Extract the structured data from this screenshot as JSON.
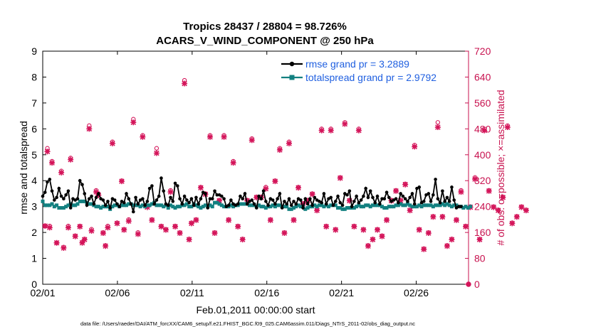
{
  "chart_data": {
    "type": "line",
    "title_line1": "Tropics 28437 / 28804 = 98.726%",
    "title_line2": "ACARS_V_WIND_COMPONENT @ 250 hPa",
    "xlabel": "Feb.01,2011 00:00:00 start",
    "ylabel_left": "rmse and totalspread",
    "ylabel_right": "# of obs: o=possible; ×=assimilated",
    "xlim": [
      0,
      28.5
    ],
    "ylim_left": [
      0,
      9
    ],
    "ylim_right": [
      0,
      720
    ],
    "x_ticks": [
      {
        "x": 0,
        "label": "02/01"
      },
      {
        "x": 5,
        "label": "02/06"
      },
      {
        "x": 10,
        "label": "02/11"
      },
      {
        "x": 15,
        "label": "02/16"
      },
      {
        "x": 20,
        "label": "02/21"
      },
      {
        "x": 25,
        "label": "02/26"
      }
    ],
    "y_ticks_left": [
      "0",
      "1",
      "2",
      "3",
      "4",
      "5",
      "6",
      "7",
      "8",
      "9"
    ],
    "y_ticks_right": [
      "0",
      "80",
      "160",
      "240",
      "320",
      "400",
      "480",
      "560",
      "640",
      "720"
    ],
    "footnote": "data file: /Users/raeder/DAI/ATM_forcXX/CAM6_setup/f.e21.FHIST_BGC.f09_025.CAM6assim.011/Diags_NTrS_2011-02/obs_diag_output.nc",
    "colors": {
      "rmse": "#000000",
      "spread": "#138080",
      "obs": "#d4155a",
      "legend_text": "#1f5fe0",
      "right_axis": "#c8124f"
    },
    "series": [
      {
        "name": "rmse grand pr = 3.2889",
        "key": "rmse",
        "values": [
          3.4,
          3.55,
          3.95,
          4.05,
          3.6,
          3.25,
          3.35,
          3.7,
          3.4,
          3.3,
          3.45,
          3.6,
          2.95,
          3.3,
          3.25,
          3.3,
          4.0,
          3.85,
          3.5,
          3.05,
          3.3,
          3.4,
          3.1,
          3.35,
          3.5,
          3.3,
          3.25,
          3.05,
          3.2,
          2.95,
          3.3,
          3.25,
          3.1,
          3.0,
          3.2,
          3.15,
          3.5,
          3.3,
          3.1,
          2.8,
          3.35,
          3.1,
          3.25,
          3.3,
          3.05,
          3.2,
          3.7,
          3.8,
          3.1,
          3.25,
          3.4,
          4.1,
          3.6,
          3.1,
          3.05,
          3.35,
          3.2,
          3.9,
          3.8,
          3.3,
          3.1,
          3.4,
          3.25,
          3.15,
          3.3,
          3.05,
          3.35,
          3.1,
          3.3,
          3.55,
          3.5,
          2.95,
          3.3,
          3.3,
          3.6,
          3.45,
          3.45,
          3.4,
          3.3,
          3.0,
          3.05,
          3.25,
          3.1,
          3.05,
          3.1,
          3.4,
          3.3,
          3.5,
          3.1,
          3.2,
          3.25,
          3.1,
          2.95,
          3.4,
          3.3,
          3.6,
          3.2,
          3.05,
          3.3,
          3.25,
          3.1,
          3.3,
          3.5,
          2.95,
          3.2,
          3.1,
          3.3,
          3.05,
          3.2,
          3.1,
          3.3,
          3.25,
          2.95,
          3.3,
          3.1,
          3.3,
          3.05,
          3.35,
          3.25,
          3.2,
          3.15,
          3.5,
          3.1,
          3.3,
          3.35,
          3.05,
          3.2,
          3.4,
          3.15,
          3.05,
          3.5,
          3.45,
          3.6,
          3.0,
          3.2,
          3.4,
          3.15,
          3.25,
          3.4,
          3.7,
          3.35,
          3.6,
          3.35,
          3.15,
          3.4,
          3.1,
          3.3,
          3.3,
          3.55,
          3.35,
          3.2,
          3.25,
          3.3,
          3.15,
          3.5,
          3.4,
          3.3,
          3.2,
          3.35,
          3.5,
          3.1,
          3.7,
          3.75,
          3.15,
          3.2,
          3.45,
          3.5,
          3.2,
          3.45,
          4.05,
          3.3,
          3.15,
          3.6,
          3.2,
          3.35,
          3.2,
          3.75,
          3.25,
          2.95,
          3.0,
          3.0
        ]
      },
      {
        "name": "totalspread grand pr = 2.9792",
        "key": "spread",
        "values": [
          3.2,
          3.05,
          3.05,
          3.05,
          3.1,
          3.0,
          3.05,
          2.95,
          2.95,
          2.95,
          3.0,
          3.05,
          3.1,
          3.05,
          3.05,
          3.1,
          3.2,
          3.2,
          3.2,
          3.15,
          3.1,
          3.1,
          3.05,
          3.0,
          3.0,
          2.95,
          3.0,
          3.0,
          3.0,
          2.9,
          3.0,
          3.05,
          3.05,
          3.0,
          3.05,
          3.05,
          3.05,
          3.1,
          3.1,
          3.05,
          3.05,
          3.05,
          3.0,
          3.05,
          3.0,
          3.05,
          3.05,
          3.1,
          3.15,
          3.05,
          3.05,
          3.05,
          3.0,
          3.05,
          2.95,
          3.05,
          3.0,
          2.95,
          3.0,
          3.0,
          3.05,
          3.05,
          3.1,
          3.0,
          3.0,
          3.1,
          3.05,
          3.0,
          2.95,
          3.0,
          3.05,
          3.0,
          3.05,
          3.0,
          3.15,
          3.15,
          3.1,
          3.05,
          3.0,
          3.0,
          3.0,
          3.05,
          3.0,
          3.05,
          3.05,
          3.1,
          3.1,
          3.1,
          3.1,
          3.05,
          3.05,
          3.05,
          3.0,
          3.05,
          3.0,
          3.0,
          2.95,
          3.0,
          3.0,
          3.05,
          3.0,
          3.05,
          3.05,
          3.0,
          3.0,
          3.0,
          2.9,
          2.9,
          2.95,
          3.0,
          3.05,
          3.0,
          3.0,
          2.9,
          2.95,
          3.0,
          3.0,
          3.05,
          3.0,
          3.05,
          3.05,
          3.0,
          3.05,
          3.0,
          3.05,
          3.05,
          3.05,
          2.95,
          2.95,
          2.9,
          2.9,
          2.95,
          2.95,
          2.95,
          2.95,
          3.0,
          3.05,
          3.0,
          3.0,
          3.05,
          3.05,
          3.0,
          3.05,
          3.05,
          3.05,
          3.05,
          3.0,
          2.95,
          2.95,
          3.0,
          3.0,
          3.0,
          3.05,
          3.05,
          3.1,
          3.05,
          3.05,
          3.1,
          3.05,
          3.0,
          3.0,
          3.0,
          3.05,
          3.0,
          3.05,
          3.05,
          3.05,
          3.05,
          3.0,
          3.05,
          3.05,
          3.05,
          3.1,
          3.05,
          3.1,
          3.05,
          3.0,
          3.05,
          3.05,
          3.0,
          3.0,
          2.95,
          3.0,
          2.95,
          3.0
        ]
      },
      {
        "name": "obs possible",
        "key": "obs_possible",
        "values": [
          180,
          420,
          180,
          380,
          128,
          350,
          115,
          180,
          390,
          150,
          180,
          130,
          140,
          490,
          170,
          290,
          280,
          160,
          120,
          180,
          440,
          190,
          320,
          170,
          200,
          510,
          160,
          460,
          240,
          200,
          420,
          180,
          170,
          290,
          180,
          160,
          630,
          140,
          190,
          200,
          300,
          280,
          460,
          160,
          260,
          460,
          200,
          380,
          180,
          140,
          260,
          450,
          270,
          270,
          300,
          200,
          320,
          420,
          160,
          440,
          200,
          300,
          250,
          260,
          280,
          230,
          480,
          180,
          480,
          170,
          330,
          500,
          260,
          180,
          480,
          170,
          120,
          140,
          170,
          150,
          200,
          260,
          290,
          260,
          310,
          230,
          430,
          170,
          110,
          160,
          210,
          500,
          210,
          120,
          140,
          200,
          290,
          180,
          240,
          330,
          140,
          480,
          290,
          240,
          230,
          270,
          490,
          190,
          210,
          240,
          230
        ]
      },
      {
        "name": "obs assimilated",
        "key": "obs_assimilated",
        "values": [
          180,
          410,
          175,
          375,
          128,
          345,
          112,
          175,
          385,
          148,
          178,
          128,
          138,
          480,
          165,
          285,
          275,
          158,
          118,
          175,
          435,
          188,
          318,
          168,
          195,
          500,
          155,
          455,
          238,
          198,
          405,
          178,
          168,
          285,
          178,
          158,
          620,
          138,
          188,
          198,
          298,
          278,
          455,
          158,
          258,
          455,
          198,
          375,
          178,
          138,
          258,
          445,
          268,
          268,
          295,
          198,
          318,
          415,
          158,
          435,
          198,
          298,
          248,
          258,
          278,
          228,
          475,
          178,
          475,
          168,
          328,
          495,
          258,
          178,
          475,
          168,
          118,
          138,
          168,
          148,
          198,
          258,
          288,
          258,
          308,
          228,
          425,
          168,
          108,
          158,
          208,
          485,
          208,
          118,
          138,
          198,
          285,
          178,
          238,
          325,
          138,
          475,
          288,
          238,
          228,
          268,
          485,
          188,
          208,
          238,
          228
        ]
      }
    ],
    "obs_x_indices": [
      1,
      2,
      3,
      4,
      6,
      8,
      9,
      11,
      12,
      14,
      16,
      17,
      18,
      20,
      21,
      23,
      24,
      26,
      27,
      28,
      30,
      32,
      34,
      35,
      37,
      39,
      41,
      43,
      45,
      47,
      49,
      51,
      53,
      55,
      57,
      59,
      61,
      63,
      64,
      66,
      68,
      70,
      72,
      74,
      76,
      78,
      80,
      82,
      84,
      86,
      88,
      90,
      92,
      94,
      96,
      98,
      100,
      102,
      104,
      106,
      108,
      110,
      112,
      114,
      116,
      118,
      120,
      122,
      124,
      126,
      128,
      130,
      132,
      134,
      136,
      138,
      140,
      142,
      144,
      146,
      148,
      150,
      152,
      154,
      156,
      158,
      160,
      162,
      164,
      166,
      168,
      170,
      172,
      174,
      176,
      178,
      180,
      182,
      184,
      186,
      188,
      190,
      192,
      194,
      196,
      198,
      200,
      202,
      204,
      206,
      208
    ]
  }
}
